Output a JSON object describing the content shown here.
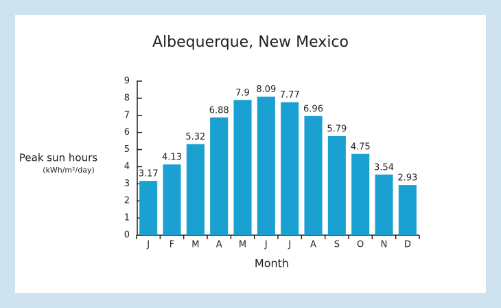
{
  "chart_data": {
    "type": "bar",
    "title": "Albequerque, New Mexico",
    "y_label": "Peak sun hours",
    "y_sublabel": "(kWh/m²/day)",
    "x_label": "Month",
    "categories": [
      "J",
      "F",
      "M",
      "A",
      "M",
      "J",
      "J",
      "A",
      "S",
      "O",
      "N",
      "D"
    ],
    "values": [
      3.17,
      4.13,
      5.32,
      6.88,
      7.9,
      8.09,
      7.77,
      6.96,
      5.79,
      4.75,
      3.54,
      2.93
    ],
    "color": "#1ba1d1",
    "ylim": [
      0,
      9
    ],
    "yticks": [
      0,
      1,
      2,
      3,
      4,
      5,
      6,
      7,
      8,
      9
    ]
  }
}
